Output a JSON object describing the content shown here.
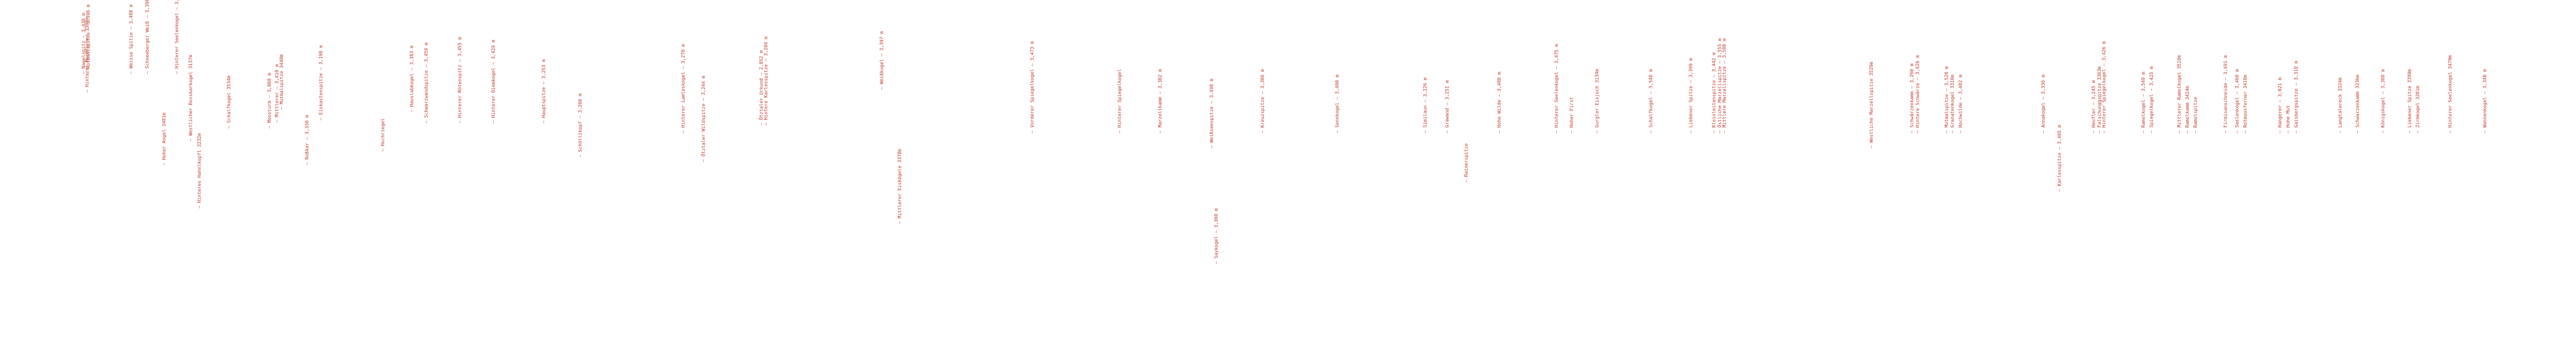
{
  "text_color": "#c0392b",
  "labels": [
    "— Nagelspitz — 3,438 m",
    "— Rotbühlspitze — 3,396 m",
    "— Hinterer Hochferner 3383m",
    "— Weisse Spitze — 3,408 m",
    "— Schneeberger Weiß — 3,390 m",
    "— Hoher Angel 3401m",
    "— Hinterer Seelenkogel — 3,475 m",
    "— Westlicher Rosskarkogel 3137m",
    "— Hinteres Hahnlkopfl 3232m",
    "— Schalfkogel 3534m",
    "— Moosturm — 3,060 m",
    "— Mittlerer — 3,410 m",
    "— Mutmalspitze 3440m",
    "— Roßkar — 3,330 m",
    "— Eiskastenspitze — 3,198 m",
    "— Hochriegel",
    "— Hauslabkogel — 3,383 m",
    "— Schwarzwandspitze — 3,459 m",
    "— Hinterer Rötenspitz — 3,455 m",
    "— Hinterer Diemkogel — 3,429 m",
    "— Hauptspitze — 3,253 m",
    "— Schöllikopf — 3,260 m",
    "— Hinterer Lamleskogel — 3,270 m",
    "— Ötztaler Wildspitze — 3,244 m",
    "— Ötztaler Urkund — 2,852 m",
    "— Hintere Karlesspitze — 3,204 m",
    "— Weißkugel — 3,397 m",
    "— Mittlerer Eiskögele 3378m",
    "— Vorderer Spiegelkogel — 3,473 m",
    "— Hinterer Spiegelkogel",
    "— Marzellkamm — 3,302 m",
    "— Weißseespitze — 3,498 m",
    "— Saykogel — 3,360 m",
    "— Kreuzspitze — 3,306 m",
    "— Sennkogel — 3,400 m",
    "— Similaun — 3,226 m",
    "— Rainerspitze",
    "— Grawand — 3,251 m",
    "— Hohe Wilde — 3,480 m",
    "— Hinterer Seelenkogel — 3,475 m",
    "— Hoher First",
    "— Gurgler Eisjoch 3134m",
    "— Schalfkogel — 3,540 m",
    "— Liebener Spitze — 3,399 m",
    "— Kleinleitenspitze — 3,442 m",
    "— Östliche Marzellspitze — 3,555 m",
    "— Mittlere Marzellspitze — 3,500 m",
    "— Westliche Marzellspitze 3529m",
    "— Schwärzenkamm — 3,260 m",
    "— Hintere Schwärze — 3,626 m",
    "— Mutmalspitze — 3,528 m",
    "— Granatenkogel 3318m",
    "— Hochwilde — 3,482 m",
    "— Annakogel — 3,336 m",
    "— Karlesspitze — 3,465 m",
    "— Heufler — 3,245 m",
    "— Falschunggspitze 3363m",
    "— Hinterer Spiegelkogel — 3,426 m",
    "— Ramolkogel — 3,549 m",
    "— Spiegelkogel — 3,425 m",
    "— Mittlerer Ramolkogel 3518m",
    "— Ramolkamm 3424m",
    "— Ramolspitze",
    "— Firmisanschneide — 3,491 m",
    "— Seelenkogel — 3,460 m",
    "— Rotmoosferner 3418m",
    "— Hangerer — 3,021 m",
    "— Hohe Mut",
    "— Gaisbergspitze — 3,310 m",
    "— Langtalereck 3324m",
    "— Schwarzenkamm 3236m",
    "— Königskogel — 3,380 m",
    "— Liebener Spitze 3399m",
    "— Zirmkogel 3281m",
    "— Hinterer Seelenkogel 3470m",
    "— Wannenkogel — 3,340 m"
  ]
}
